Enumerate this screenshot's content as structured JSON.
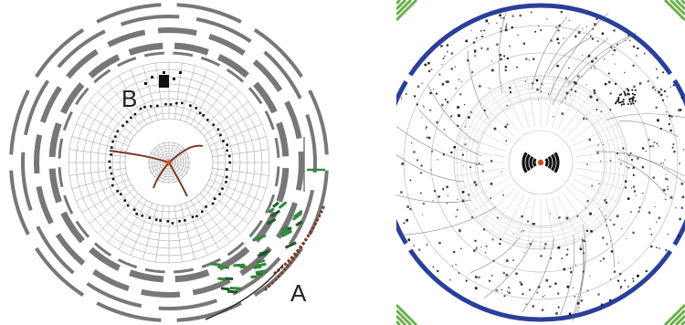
{
  "left_display": {
    "labels": {
      "a": "A",
      "b": "B"
    },
    "colors": {
      "detector": "#777777",
      "grid": "#9a9a9a",
      "track": "#7a3a22",
      "shower_green": "#2f8a3a",
      "dark_green": "#1f5a2a",
      "hits": "#111111"
    }
  },
  "right_display": {
    "colors": {
      "outer_ring": "#2a3f9a",
      "corner_marks": "#6ab04c",
      "hits": "#111111",
      "grid": "#bdbdbd",
      "center": "#d94a1a"
    }
  }
}
